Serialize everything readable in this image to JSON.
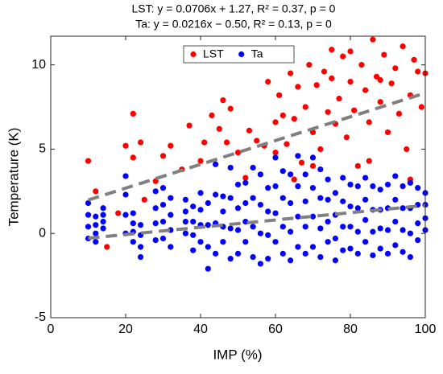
{
  "chart_data": {
    "type": "scatter",
    "title_lines": [
      "LST: y = 0.0706x + 1.27, R² = 0.37, p = 0",
      "Ta: y = 0.0216x − 0.50, R² = 0.13, p = 0"
    ],
    "xlabel": "IMP (%)",
    "ylabel": "Temperature (K)",
    "xlim": [
      0,
      100
    ],
    "ylim": [
      -5,
      11.7
    ],
    "xticks": [
      0,
      20,
      40,
      60,
      80,
      100
    ],
    "yticks": [
      -5,
      0,
      5,
      10
    ],
    "legend": "top",
    "series": [
      {
        "name": "LST",
        "color": "#ff0000",
        "x": [
          10,
          12,
          15,
          18,
          20,
          22,
          22,
          24,
          25,
          28,
          30,
          32,
          35,
          37,
          40,
          41,
          43,
          45,
          46,
          47,
          48,
          50,
          52,
          53,
          55,
          57,
          58,
          60,
          61,
          62,
          63,
          64,
          65,
          66,
          67,
          68,
          69,
          70,
          71,
          72,
          73,
          74,
          75,
          76,
          77,
          78,
          79,
          80,
          81,
          82,
          83,
          84,
          85,
          86,
          87,
          88,
          89,
          90,
          91,
          92,
          93,
          94,
          95,
          96,
          97,
          98,
          99,
          100,
          96,
          85,
          70,
          65,
          60,
          75,
          80,
          88
        ],
        "values": [
          4.3,
          2.5,
          -0.8,
          1.2,
          5.2,
          7.1,
          4.5,
          5.4,
          2,
          3.1,
          4.6,
          5.2,
          3.8,
          6.4,
          4.3,
          5.4,
          7.0,
          6.2,
          7.9,
          5.4,
          7.4,
          4.8,
          3.3,
          6.1,
          5.5,
          5.2,
          9.0,
          6.6,
          8.2,
          7.0,
          5.3,
          9.5,
          6.8,
          8.7,
          4.2,
          7.5,
          10.0,
          6.0,
          8.8,
          5.0,
          9.6,
          7.2,
          10.9,
          6.5,
          8.0,
          10.5,
          5.7,
          9.0,
          7.3,
          4.0,
          10.0,
          8.5,
          6.6,
          11.5,
          9.3,
          7.8,
          10.6,
          6.0,
          8.9,
          9.8,
          7.1,
          11.1,
          5.0,
          8.2,
          10.3,
          9.6,
          7.5,
          9.5,
          3.2,
          4.3,
          4.0,
          3.2,
          4.8,
          9.2,
          10.8,
          9.1
        ]
      },
      {
        "name": "Ta",
        "color": "#0000ff",
        "x": [
          10,
          10,
          10,
          10,
          12,
          12,
          12,
          12,
          14,
          14,
          14,
          14,
          20,
          20,
          20,
          20,
          22,
          22,
          22,
          22,
          24,
          24,
          24,
          24,
          28,
          28,
          28,
          28,
          30,
          30,
          30,
          30,
          32,
          32,
          32,
          32,
          36,
          36,
          36,
          36,
          38,
          38,
          38,
          38,
          40,
          40,
          40,
          40,
          42,
          42,
          42,
          42,
          44,
          44,
          44,
          44,
          46,
          46,
          46,
          46,
          48,
          48,
          48,
          48,
          50,
          50,
          50,
          50,
          52,
          52,
          52,
          52,
          54,
          54,
          54,
          54,
          56,
          56,
          56,
          56,
          58,
          58,
          58,
          58,
          60,
          60,
          60,
          60,
          62,
          62,
          62,
          62,
          64,
          64,
          64,
          64,
          66,
          66,
          66,
          66,
          68,
          68,
          68,
          68,
          70,
          70,
          70,
          70,
          72,
          72,
          72,
          72,
          74,
          74,
          74,
          74,
          76,
          76,
          76,
          76,
          78,
          78,
          78,
          78,
          80,
          80,
          80,
          80,
          82,
          82,
          82,
          82,
          84,
          84,
          84,
          84,
          86,
          86,
          86,
          86,
          88,
          88,
          88,
          88,
          90,
          90,
          90,
          90,
          92,
          92,
          92,
          92,
          94,
          94,
          94,
          94,
          96,
          96,
          96,
          96,
          98,
          98,
          98,
          98,
          100,
          100,
          100,
          100
        ],
        "values": [
          -0.3,
          0.4,
          1.1,
          1.8,
          -0.5,
          0,
          0.5,
          1.0,
          0.3,
          0.7,
          1.1,
          1.5,
          0,
          1.1,
          2.3,
          3.4,
          -0.5,
          0.1,
          0.6,
          1.2,
          -1.4,
          -0.8,
          -0.1,
          0.5,
          -0.4,
          0.6,
          1.5,
          2.5,
          -0.3,
          0.7,
          1.7,
          2.7,
          -0.8,
          0.2,
          1.1,
          2.1,
          0,
          0.7,
          1.3,
          2.0,
          -1.0,
          -0.1,
          0.7,
          1.6,
          -0.5,
          0.5,
          1.4,
          2.4,
          -2.1,
          -0.8,
          0.5,
          1.8,
          -1.2,
          0.6,
          2.3,
          4.1,
          -0.5,
          0.4,
          1.3,
          2.2,
          -1.5,
          0.3,
          2.1,
          3.9,
          -1.2,
          0.2,
          1.5,
          2.9,
          -0.5,
          0.7,
          1.8,
          3.0,
          -1.4,
          0.4,
          2.1,
          3.9,
          -1.8,
          0,
          1.7,
          3.5,
          -1.5,
          -0.1,
          1.3,
          2.7,
          -0.5,
          1.2,
          2.8,
          4.5,
          -1.2,
          0.4,
          2.1,
          3.7,
          -1.6,
          0.1,
          1.8,
          3.5,
          -0.8,
          1.0,
          2.8,
          4.6,
          -1.2,
          0.4,
          1.9,
          3.5,
          -0.8,
          1.0,
          2.7,
          4.5,
          -1.4,
          0.3,
          2.1,
          3.8,
          -0.5,
          0.7,
          2.0,
          3.2,
          -1.6,
          -0.3,
          1.1,
          2.4,
          -1.0,
          0.4,
          1.9,
          3.3,
          -0.9,
          0.4,
          1.6,
          2.9,
          -1.2,
          0.1,
          1.5,
          2.8,
          -0.5,
          0.8,
          2.0,
          3.3,
          -1.3,
          0.1,
          1.4,
          2.8,
          -0.9,
          0.3,
          1.4,
          2.6,
          -1.2,
          0.2,
          1.5,
          2.9,
          -0.7,
          0.7,
          2.0,
          3.4,
          -1.1,
          0.2,
          1.5,
          2.8,
          -1.4,
          0,
          1.5,
          3.0,
          -0.4,
          0.6,
          1.7,
          2.7,
          0.2,
          0.9,
          1.7,
          2.4
        ]
      }
    ],
    "trend_lines": [
      {
        "color": "#808080",
        "x": [
          10,
          100
        ],
        "values": [
          1.98,
          8.33
        ]
      },
      {
        "color": "#808080",
        "x": [
          10,
          100
        ],
        "values": [
          -0.28,
          1.66
        ]
      }
    ]
  }
}
